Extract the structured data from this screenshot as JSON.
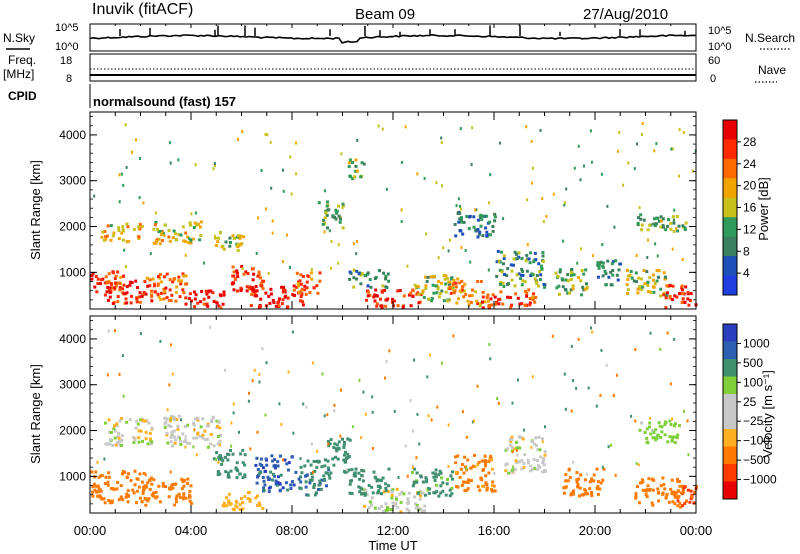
{
  "header": {
    "station": "Inuvik (fitACF)",
    "beam": "Beam 09",
    "date": "27/Aug/2010"
  },
  "top_panels": {
    "nsky": {
      "left_label": "N.Sky",
      "left_ticks": [
        "10^5",
        "10^0"
      ],
      "right_label": "N.Search",
      "right_ticks": [
        "10^5",
        "10^0"
      ]
    },
    "freq": {
      "left_label_line1": "Freq.",
      "left_label_line2": "[MHz]",
      "left_ticks": [
        "18",
        "8"
      ],
      "right_label": "Nave",
      "right_ticks": [
        "60",
        "0"
      ]
    },
    "cpid": {
      "label": "CPID",
      "text": "normalsound (fast) 157"
    }
  },
  "colors": {
    "power_scale": [
      "#1f3fe0",
      "#1f4fb8",
      "#3b7f5e",
      "#2f9a5a",
      "#c7c11b",
      "#f0a500",
      "#ff6a00",
      "#ff2a00",
      "#e80000"
    ],
    "velocity_scale": [
      "#e80000",
      "#ff3a00",
      "#ff7a00",
      "#ffb020",
      "#c8c8c8",
      "#c8c8c8",
      "#7fcf3a",
      "#3f8f6f",
      "#2f5fb0",
      "#2a3fc0"
    ]
  },
  "chart_data": [
    {
      "type": "heatmap",
      "name": "power",
      "ylabel": "Slant Range [km]",
      "xlabel": "",
      "xlim": [
        0,
        24
      ],
      "ylim": [
        200,
        4500
      ],
      "yticks": [
        "1000",
        "2000",
        "3000",
        "4000"
      ],
      "x_tick_labels": [
        "00:00",
        "04:00",
        "08:00",
        "12:00",
        "16:00",
        "20:00",
        "00:00"
      ],
      "colorbar": {
        "label": "Power [dB]",
        "ticks": [
          "28",
          "24",
          "20",
          "16",
          "12",
          "8",
          "4"
        ],
        "range": [
          0,
          30
        ]
      },
      "blobs": [
        {
          "t": 0.5,
          "r": 800,
          "dt": 1.0,
          "dr": 250,
          "v": 24
        },
        {
          "t": 1.5,
          "r": 600,
          "dt": 1.2,
          "dr": 250,
          "v": 26
        },
        {
          "t": 3.0,
          "r": 700,
          "dt": 1.0,
          "dr": 300,
          "v": 22
        },
        {
          "t": 4.5,
          "r": 450,
          "dt": 1.0,
          "dr": 200,
          "v": 28
        },
        {
          "t": 6.2,
          "r": 900,
          "dt": 0.8,
          "dr": 300,
          "v": 26
        },
        {
          "t": 7.4,
          "r": 500,
          "dt": 1.4,
          "dr": 250,
          "v": 27
        },
        {
          "t": 8.6,
          "r": 800,
          "dt": 0.6,
          "dr": 250,
          "v": 22
        },
        {
          "t": 1.2,
          "r": 1900,
          "dt": 1.0,
          "dr": 200,
          "v": 18
        },
        {
          "t": 3.4,
          "r": 1900,
          "dt": 1.2,
          "dr": 250,
          "v": 16
        },
        {
          "t": 5.5,
          "r": 1700,
          "dt": 0.8,
          "dr": 200,
          "v": 14
        },
        {
          "t": 9.5,
          "r": 2300,
          "dt": 0.6,
          "dr": 300,
          "v": 12
        },
        {
          "t": 10.5,
          "r": 3300,
          "dt": 0.4,
          "dr": 250,
          "v": 14
        },
        {
          "t": 12.0,
          "r": 450,
          "dt": 1.4,
          "dr": 200,
          "v": 26
        },
        {
          "t": 13.6,
          "r": 700,
          "dt": 1.0,
          "dr": 300,
          "v": 14
        },
        {
          "t": 14.8,
          "r": 600,
          "dt": 0.8,
          "dr": 300,
          "v": 20
        },
        {
          "t": 15.2,
          "r": 2100,
          "dt": 1.0,
          "dr": 300,
          "v": 8
        },
        {
          "t": 17.0,
          "r": 1100,
          "dt": 1.2,
          "dr": 400,
          "v": 10
        },
        {
          "t": 19.0,
          "r": 800,
          "dt": 0.8,
          "dr": 300,
          "v": 12
        },
        {
          "t": 20.5,
          "r": 1000,
          "dt": 0.6,
          "dr": 300,
          "v": 8
        },
        {
          "t": 22.0,
          "r": 800,
          "dt": 1.0,
          "dr": 300,
          "v": 14
        },
        {
          "t": 23.3,
          "r": 500,
          "dt": 0.8,
          "dr": 250,
          "v": 26
        },
        {
          "t": 22.6,
          "r": 2100,
          "dt": 1.2,
          "dr": 200,
          "v": 12
        },
        {
          "t": 11.0,
          "r": 900,
          "dt": 1.0,
          "dr": 200,
          "v": 10
        },
        {
          "t": 16.5,
          "r": 450,
          "dt": 1.4,
          "dr": 200,
          "v": 24
        }
      ]
    },
    {
      "type": "heatmap",
      "name": "velocity",
      "ylabel": "Slant Range [km]",
      "xlabel": "Time UT",
      "xlim": [
        0,
        24
      ],
      "ylim": [
        200,
        4500
      ],
      "yticks": [
        "1000",
        "2000",
        "3000",
        "4000"
      ],
      "x_tick_labels": [
        "00:00",
        "04:00",
        "08:00",
        "12:00",
        "16:00",
        "20:00",
        "00:00"
      ],
      "colorbar": {
        "label": "Velocity [m s⁻¹]",
        "ticks": [
          "1000",
          "500",
          "100",
          "25",
          "−25",
          "−100",
          "−500",
          "−1000"
        ]
      },
      "blobs": [
        {
          "t": 1.0,
          "r": 800,
          "dt": 1.5,
          "dr": 350,
          "v": -300
        },
        {
          "t": 3.0,
          "r": 700,
          "dt": 1.2,
          "dr": 300,
          "v": -200
        },
        {
          "t": 5.5,
          "r": 1300,
          "dt": 0.8,
          "dr": 300,
          "v": 300
        },
        {
          "t": 7.3,
          "r": 1100,
          "dt": 1.0,
          "dr": 400,
          "v": 800
        },
        {
          "t": 8.8,
          "r": 1000,
          "dt": 0.8,
          "dr": 400,
          "v": 400
        },
        {
          "t": 9.8,
          "r": 1500,
          "dt": 0.6,
          "dr": 400,
          "v": 200
        },
        {
          "t": 12.0,
          "r": 500,
          "dt": 1.5,
          "dr": 250,
          "v": 0
        },
        {
          "t": 13.5,
          "r": 900,
          "dt": 1.0,
          "dr": 300,
          "v": 150
        },
        {
          "t": 15.2,
          "r": 1100,
          "dt": 1.0,
          "dr": 400,
          "v": -150
        },
        {
          "t": 17.2,
          "r": 1500,
          "dt": 1.0,
          "dr": 400,
          "v": 0
        },
        {
          "t": 19.5,
          "r": 900,
          "dt": 1.0,
          "dr": 300,
          "v": -200
        },
        {
          "t": 22.5,
          "r": 700,
          "dt": 1.2,
          "dr": 300,
          "v": -250
        },
        {
          "t": 23.5,
          "r": 600,
          "dt": 0.6,
          "dr": 250,
          "v": -600
        },
        {
          "t": 1.5,
          "r": 2000,
          "dt": 1.2,
          "dr": 300,
          "v": 0
        },
        {
          "t": 4.0,
          "r": 2000,
          "dt": 1.4,
          "dr": 350,
          "v": 0
        },
        {
          "t": 22.5,
          "r": 2000,
          "dt": 1.0,
          "dr": 250,
          "v": 60
        },
        {
          "t": 11.0,
          "r": 900,
          "dt": 1.0,
          "dr": 300,
          "v": 300
        },
        {
          "t": 6.0,
          "r": 500,
          "dt": 1.0,
          "dr": 200,
          "v": -60
        }
      ]
    }
  ]
}
